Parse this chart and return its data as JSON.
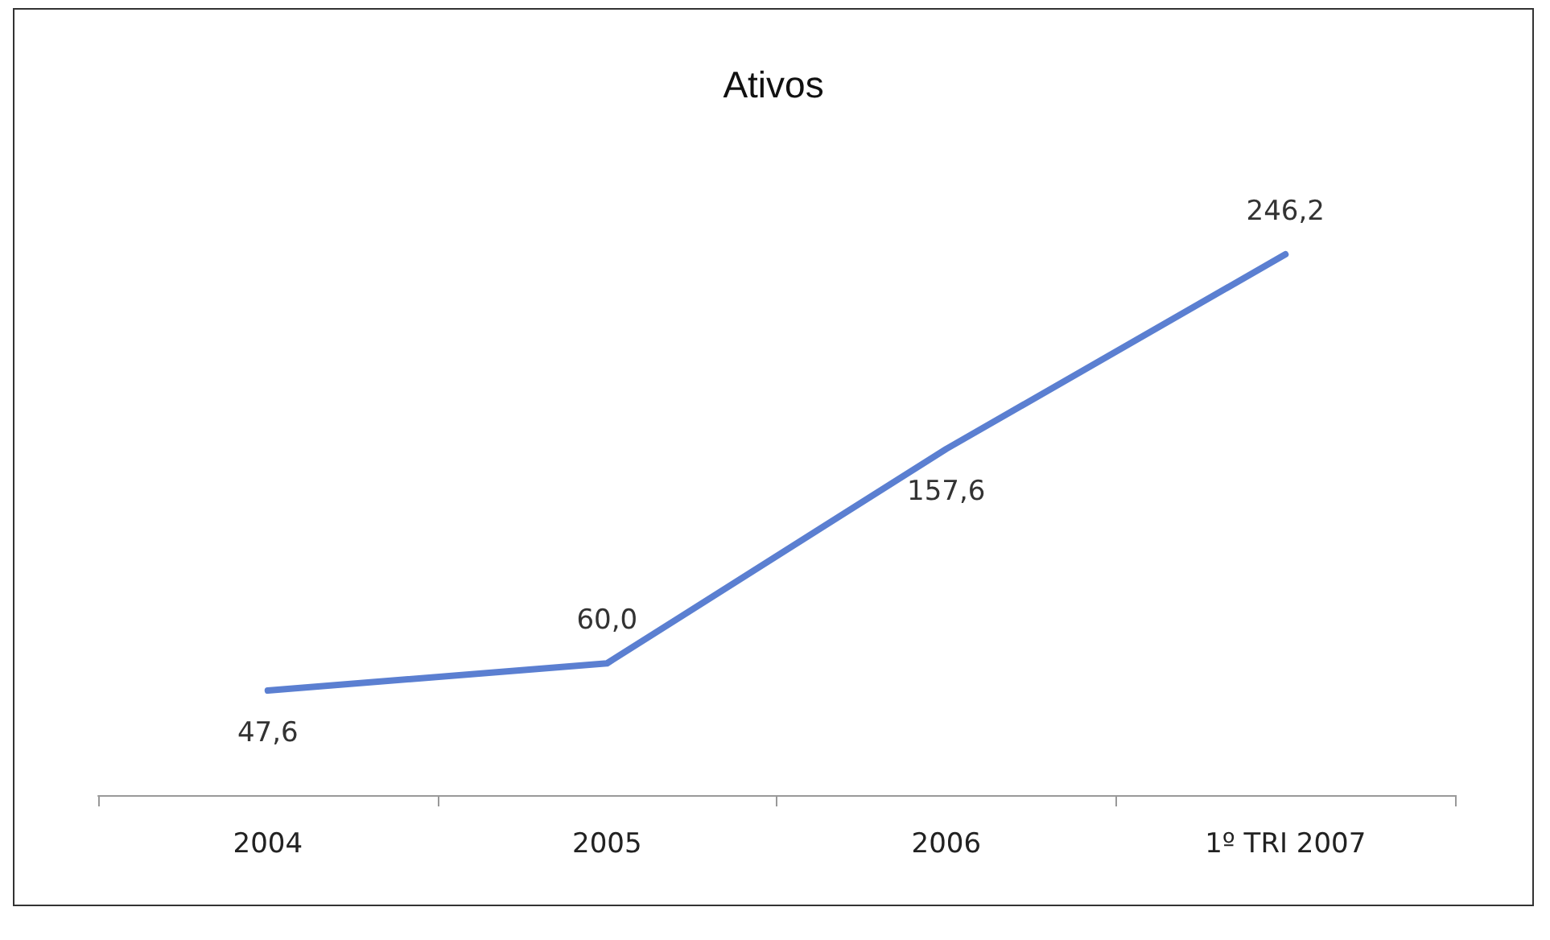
{
  "chart_data": {
    "type": "line",
    "title": "Ativos",
    "categories": [
      "2004",
      "2005",
      "2006",
      "1º TRI 2007"
    ],
    "series": [
      {
        "color": "#5b7fd1",
        "values": [
          47.6,
          60.0,
          157.6,
          246.2
        ],
        "value_labels": [
          "47,6",
          "60,0",
          "157,6",
          "246,2"
        ]
      }
    ],
    "grid": false,
    "marker": "none",
    "line_style": "solid",
    "tick_labels": "x"
  }
}
